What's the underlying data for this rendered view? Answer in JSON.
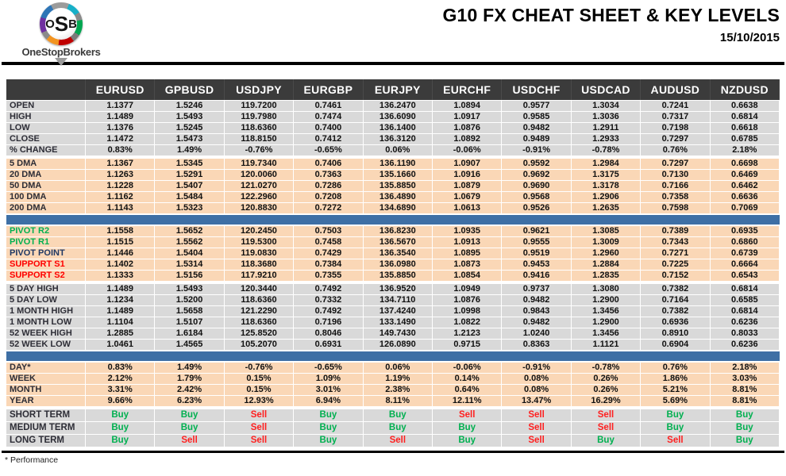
{
  "header": {
    "logo": {
      "letters": [
        "O",
        "S",
        "B"
      ],
      "brand": "OneStopBrokers"
    }
  },
  "colors": {
    "header_bg": "#3b3b3b",
    "band_gray": "#d9d9d9",
    "band_peach": "#fad7b6",
    "divider_blue": "#3e6fa5",
    "buy_green": "#00b050",
    "sell_red": "#ff1f1f",
    "pivot_resistance_green": "#00b050",
    "support_red": "#ff0000",
    "pivot_point_navy": "#1f3864"
  },
  "chart_data": {
    "type": "table",
    "title": "G10 FX CHEAT SHEET & KEY LEVELS",
    "date": "15/10/2015",
    "footnote": "* Performance",
    "columns": [
      "EURUSD",
      "GPBUSD",
      "USDJPY",
      "EURGBP",
      "EURJPY",
      "EURCHF",
      "USDCHF",
      "USDCAD",
      "AUDUSD",
      "NZDUSD"
    ],
    "sections": [
      {
        "name": "daily-ohlc",
        "style": "gray",
        "separator": "none",
        "rows": [
          {
            "label": "OPEN",
            "values": [
              "1.1377",
              "1.5246",
              "119.7200",
              "0.7461",
              "136.2470",
              "1.0894",
              "0.9577",
              "1.3034",
              "0.7241",
              "0.6638"
            ]
          },
          {
            "label": "HIGH",
            "values": [
              "1.1489",
              "1.5493",
              "119.7980",
              "0.7474",
              "136.6090",
              "1.0917",
              "0.9585",
              "1.3036",
              "0.7317",
              "0.6814"
            ]
          },
          {
            "label": "LOW",
            "values": [
              "1.1376",
              "1.5245",
              "118.6360",
              "0.7400",
              "136.1400",
              "1.0876",
              "0.9482",
              "1.2911",
              "0.7198",
              "0.6618"
            ]
          },
          {
            "label": "CLOSE",
            "values": [
              "1.1472",
              "1.5473",
              "118.8150",
              "0.7412",
              "136.3120",
              "1.0892",
              "0.9489",
              "1.2933",
              "0.7297",
              "0.6785"
            ]
          },
          {
            "label": "% CHANGE",
            "values": [
              "0.83%",
              "1.49%",
              "-0.76%",
              "-0.65%",
              "0.06%",
              "-0.06%",
              "-0.91%",
              "-0.78%",
              "0.76%",
              "2.18%"
            ]
          }
        ]
      },
      {
        "name": "moving-averages",
        "style": "peach",
        "separator": "gap",
        "rows": [
          {
            "label": "5 DMA",
            "values": [
              "1.1367",
              "1.5345",
              "119.7340",
              "0.7406",
              "136.1190",
              "1.0907",
              "0.9592",
              "1.2984",
              "0.7297",
              "0.6698"
            ]
          },
          {
            "label": "20 DMA",
            "values": [
              "1.1263",
              "1.5291",
              "120.0060",
              "0.7363",
              "135.1660",
              "1.0916",
              "0.9692",
              "1.3175",
              "0.7130",
              "0.6469"
            ]
          },
          {
            "label": "50 DMA",
            "values": [
              "1.1228",
              "1.5407",
              "121.0270",
              "0.7286",
              "135.8850",
              "1.0879",
              "0.9690",
              "1.3178",
              "0.7166",
              "0.6462"
            ]
          },
          {
            "label": "100 DMA",
            "values": [
              "1.1162",
              "1.5484",
              "122.2960",
              "0.7208",
              "136.4890",
              "1.0679",
              "0.9568",
              "1.2906",
              "0.7358",
              "0.6636"
            ]
          },
          {
            "label": "200 DMA",
            "values": [
              "1.1143",
              "1.5323",
              "120.8830",
              "0.7272",
              "134.6890",
              "1.0613",
              "0.9526",
              "1.2635",
              "0.7598",
              "0.7069"
            ]
          }
        ]
      },
      {
        "name": "pivots",
        "style": "peach",
        "separator": "bar",
        "rows": [
          {
            "label": "PIVOT R2",
            "label_color": "green",
            "values": [
              "1.1558",
              "1.5652",
              "120.2450",
              "0.7503",
              "136.8230",
              "1.0935",
              "0.9621",
              "1.3085",
              "0.7389",
              "0.6935"
            ]
          },
          {
            "label": "PIVOT R1",
            "label_color": "green",
            "values": [
              "1.1515",
              "1.5562",
              "119.5300",
              "0.7458",
              "136.5670",
              "1.0913",
              "0.9555",
              "1.3009",
              "0.7343",
              "0.6860"
            ]
          },
          {
            "label": "PIVOT POINT",
            "label_color": "navy",
            "values": [
              "1.1446",
              "1.5404",
              "119.0830",
              "0.7429",
              "136.3540",
              "1.0895",
              "0.9519",
              "1.2960",
              "0.7271",
              "0.6739"
            ]
          },
          {
            "label": "SUPPORT S1",
            "label_color": "red",
            "values": [
              "1.1402",
              "1.5314",
              "118.3680",
              "0.7384",
              "136.0980",
              "1.0873",
              "0.9453",
              "1.2884",
              "0.7225",
              "0.6664"
            ]
          },
          {
            "label": "SUPPORT S2",
            "label_color": "red",
            "values": [
              "1.1333",
              "1.5156",
              "117.9210",
              "0.7355",
              "135.8850",
              "1.0854",
              "0.9416",
              "1.2835",
              "0.7152",
              "0.6543"
            ]
          }
        ]
      },
      {
        "name": "ranges",
        "style": "gray",
        "separator": "gap",
        "rows": [
          {
            "label": "5 DAY HIGH",
            "values": [
              "1.1489",
              "1.5493",
              "120.3440",
              "0.7492",
              "136.9520",
              "1.0949",
              "0.9737",
              "1.3080",
              "0.7382",
              "0.6814"
            ]
          },
          {
            "label": "5 DAY LOW",
            "values": [
              "1.1234",
              "1.5200",
              "118.6360",
              "0.7332",
              "134.7110",
              "1.0876",
              "0.9482",
              "1.2900",
              "0.7164",
              "0.6585"
            ]
          },
          {
            "label": "1 MONTH HIGH",
            "values": [
              "1.1489",
              "1.5658",
              "121.2290",
              "0.7492",
              "137.4240",
              "1.0998",
              "0.9843",
              "1.3456",
              "0.7382",
              "0.6814"
            ]
          },
          {
            "label": "1 MONTH LOW",
            "values": [
              "1.1104",
              "1.5107",
              "118.6360",
              "0.7196",
              "133.1490",
              "1.0822",
              "0.9482",
              "1.2900",
              "0.6936",
              "0.6236"
            ]
          },
          {
            "label": "52 WEEK HIGH",
            "values": [
              "1.2885",
              "1.6184",
              "125.8520",
              "0.8046",
              "149.7430",
              "1.2123",
              "1.0240",
              "1.3456",
              "0.8910",
              "0.8033"
            ]
          },
          {
            "label": "52 WEEK LOW",
            "values": [
              "1.0461",
              "1.4565",
              "105.2070",
              "0.6931",
              "126.0890",
              "0.9715",
              "0.8363",
              "1.1121",
              "0.6904",
              "0.6236"
            ]
          }
        ]
      },
      {
        "name": "performance",
        "style": "peach",
        "separator": "bar",
        "rows": [
          {
            "label": "DAY*",
            "values": [
              "0.83%",
              "1.49%",
              "-0.76%",
              "-0.65%",
              "0.06%",
              "-0.06%",
              "-0.91%",
              "-0.78%",
              "0.76%",
              "2.18%"
            ]
          },
          {
            "label": "WEEK",
            "values": [
              "2.12%",
              "1.79%",
              "0.15%",
              "1.09%",
              "1.19%",
              "0.14%",
              "0.08%",
              "0.26%",
              "1.86%",
              "3.03%"
            ]
          },
          {
            "label": "MONTH",
            "values": [
              "3.31%",
              "2.42%",
              "0.15%",
              "3.01%",
              "2.38%",
              "0.64%",
              "0.08%",
              "0.26%",
              "5.21%",
              "8.81%"
            ]
          },
          {
            "label": "YEAR",
            "values": [
              "9.66%",
              "6.23%",
              "12.93%",
              "6.94%",
              "8.11%",
              "12.11%",
              "13.47%",
              "16.29%",
              "5.69%",
              "8.81%"
            ]
          }
        ]
      },
      {
        "name": "signals",
        "style": "gray signals",
        "separator": "gap",
        "rows": [
          {
            "label": "SHORT TERM",
            "values": [
              "Buy",
              "Buy",
              "Sell",
              "Buy",
              "Buy",
              "Sell",
              "Sell",
              "Sell",
              "Buy",
              "Buy"
            ]
          },
          {
            "label": "MEDIUM TERM",
            "values": [
              "Buy",
              "Buy",
              "Sell",
              "Buy",
              "Buy",
              "Buy",
              "Sell",
              "Sell",
              "Buy",
              "Buy"
            ]
          },
          {
            "label": "LONG TERM",
            "values": [
              "Buy",
              "Sell",
              "Sell",
              "Buy",
              "Sell",
              "Buy",
              "Sell",
              "Buy",
              "Sell",
              "Buy"
            ]
          }
        ]
      }
    ]
  }
}
